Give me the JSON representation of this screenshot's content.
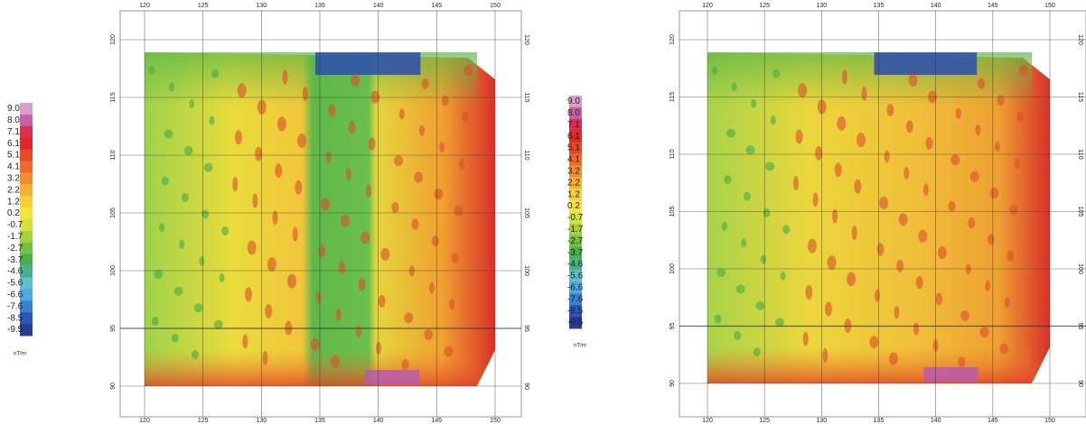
{
  "maps": [
    {
      "colorbar": {
        "labels": [
          "9.0",
          "8.0",
          "7.1",
          "6.1",
          "5.1",
          "4.1",
          "3.2",
          "2.2",
          "1.2",
          "0.2",
          "-0.7",
          "-1.7",
          "-2.7",
          "-3.7",
          "-4.6",
          "-5.6",
          "-6.6",
          "-7.6",
          "-8.5",
          "-9.5"
        ],
        "unit": "nT/m"
      },
      "x_ticks": [
        120,
        125,
        130,
        135,
        140,
        145,
        150
      ],
      "y_ticks": [
        120,
        115,
        110,
        105,
        100,
        95,
        90
      ]
    },
    {
      "colorbar": {
        "labels": [
          "9.0",
          "8.0",
          "7.1",
          "6.1",
          "5.1",
          "4.1",
          "3.2",
          "2.2",
          "1.2",
          "0.2",
          "-0.7",
          "-1.7",
          "-2.7",
          "-3.7",
          "-4.6",
          "-5.6",
          "-6.6",
          "-7.6",
          "-8.5",
          "-9.5"
        ],
        "unit": "nT/m"
      },
      "x_ticks": [
        120,
        125,
        130,
        135,
        140,
        145,
        150
      ],
      "y_ticks": [
        120,
        115,
        110,
        105,
        100,
        95,
        90
      ]
    }
  ]
}
